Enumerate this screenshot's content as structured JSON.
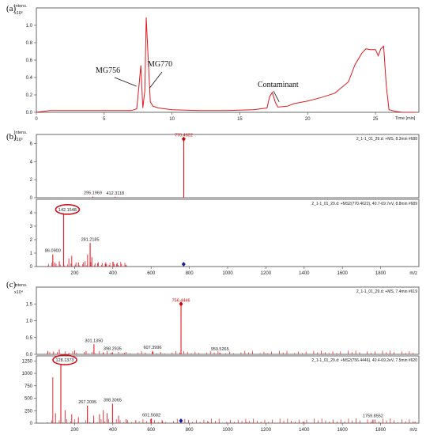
{
  "chart_data": [
    {
      "panel": "(a)",
      "type": "line",
      "y_label": "Intens.",
      "y_exp": "x10⁶",
      "x_label": "Time [min]",
      "xlim": [
        0,
        28.2
      ],
      "ylim": [
        0,
        1.2
      ],
      "x_ticks": [
        0,
        5,
        10,
        15,
        20,
        25
      ],
      "y_ticks": [
        "0.0",
        "0.2",
        "0.4",
        "0.6",
        "0.8",
        "1.0"
      ],
      "color": "#e0191f",
      "series": [
        {
          "x": [
            0,
            1,
            2,
            3,
            4,
            5,
            6,
            7,
            7.4,
            7.55,
            7.7,
            7.85,
            8.0,
            8.1,
            8.25,
            8.4,
            8.6,
            9,
            10,
            12,
            14,
            16,
            17,
            17.2,
            17.4,
            17.6,
            17.8,
            18.5,
            19,
            20,
            21,
            22,
            23,
            23.5,
            24,
            24.3,
            24.6,
            25,
            25.2,
            25.4,
            25.6,
            25.8,
            26,
            26.5,
            27,
            28
          ],
          "y": [
            0.0,
            0.02,
            0.02,
            0.02,
            0.02,
            0.02,
            0.02,
            0.02,
            0.04,
            0.28,
            0.54,
            0.05,
            0.25,
            1.09,
            0.6,
            0.12,
            0.07,
            0.05,
            0.03,
            0.02,
            0.02,
            0.03,
            0.05,
            0.18,
            0.23,
            0.12,
            0.06,
            0.07,
            0.1,
            0.13,
            0.17,
            0.22,
            0.35,
            0.55,
            0.68,
            0.73,
            0.72,
            0.72,
            0.65,
            0.73,
            0.76,
            0.3,
            0.03,
            0.01,
            0.0,
            0.0
          ]
        }
      ],
      "annotations": [
        {
          "text": "MG756",
          "x": 7.55,
          "y": 0.54
        },
        {
          "text": "MG770",
          "x": 8.1,
          "y": 1.0
        },
        {
          "text": "Contaminant",
          "x": 17.4,
          "y": 0.23
        }
      ]
    },
    {
      "panel": "(b)",
      "type": "bar",
      "subplot": "MS",
      "info": "2_1-1_01_29.d: +MS, 8.3min #688",
      "y_label": "Intens.",
      "y_exp": "x10⁵",
      "xlim": [
        0,
        2000
      ],
      "ylim": [
        0,
        7
      ],
      "y_ticks": [
        "0",
        "2",
        "4",
        "6"
      ],
      "peaks": [
        {
          "x": 295.1969,
          "y": 0.12,
          "label": "295.1969"
        },
        {
          "x": 412.3118,
          "y": 0.1,
          "label": "412.3118"
        },
        {
          "x": 770.4622,
          "y": 6.5,
          "label": "770.4622",
          "precursor": true
        }
      ]
    },
    {
      "panel": "(b)",
      "type": "bar",
      "subplot": "MS2",
      "info": "2_1-1_01_29.d: +MS2(770.4622), 40.7-69.7eV, 8.8min #689",
      "xlabel": "m/z",
      "xlim": [
        0,
        2000
      ],
      "ylim": [
        0,
        5
      ],
      "x_ticks": [
        200,
        400,
        600,
        800,
        1000,
        1200,
        1400,
        1600,
        1800
      ],
      "y_ticks": [
        "0",
        "1",
        "2",
        "3",
        "4"
      ],
      "circled": "142.1548",
      "precursor_marker": 770,
      "peaks": [
        {
          "x": 86.09,
          "y": 0.9,
          "label": "86.0900"
        },
        {
          "x": 96,
          "y": 0.3
        },
        {
          "x": 120,
          "y": 0.4
        },
        {
          "x": 142.1548,
          "y": 3.95,
          "label": "142.1548"
        },
        {
          "x": 170,
          "y": 0.6
        },
        {
          "x": 185,
          "y": 0.8
        },
        {
          "x": 220,
          "y": 0.3
        },
        {
          "x": 255,
          "y": 0.4
        },
        {
          "x": 268,
          "y": 0.9
        },
        {
          "x": 281.2185,
          "y": 1.75,
          "label": "281.2185"
        },
        {
          "x": 290,
          "y": 0.7
        },
        {
          "x": 320,
          "y": 0.25
        },
        {
          "x": 360,
          "y": 0.2
        },
        {
          "x": 400,
          "y": 0.35
        },
        {
          "x": 420,
          "y": 0.2
        },
        {
          "x": 470,
          "y": 0.1
        }
      ]
    },
    {
      "panel": "(c)",
      "type": "bar",
      "subplot": "MS",
      "info": "2_1-1_01_29.d: +MS, 7.4min #619",
      "y_label": "Intens.",
      "y_exp": "x10⁴",
      "xlim": [
        0,
        2000
      ],
      "ylim": [
        0,
        2.0
      ],
      "y_ticks": [
        "0.0",
        "0.5",
        "1.0",
        "1.5"
      ],
      "peaks": [
        {
          "x": 60,
          "y": 0.1
        },
        {
          "x": 90,
          "y": 0.08
        },
        {
          "x": 120,
          "y": 0.15
        },
        {
          "x": 200,
          "y": 0.12
        },
        {
          "x": 260,
          "y": 0.1
        },
        {
          "x": 301.135,
          "y": 0.3,
          "label": "301.1350"
        },
        {
          "x": 350,
          "y": 0.06
        },
        {
          "x": 398.2935,
          "y": 0.06,
          "label": "398.2935"
        },
        {
          "x": 460,
          "y": 0.04
        },
        {
          "x": 607.3996,
          "y": 0.1,
          "label": "607.3996"
        },
        {
          "x": 756.4446,
          "y": 1.5,
          "label": "756.4446",
          "precursor": true
        },
        {
          "x": 850,
          "y": 0.03
        },
        {
          "x": 959.5265,
          "y": 0.05,
          "label": "959.5265"
        },
        {
          "x": 1200,
          "y": 0.02
        },
        {
          "x": 1500,
          "y": 0.02
        }
      ]
    },
    {
      "panel": "(c)",
      "type": "bar",
      "subplot": "MS2",
      "info": "2_1-1_01_29.d: +MS2(756.4446), 40.4-69.2eV, 7.5min #620",
      "xlabel": "m/z",
      "xlim": [
        0,
        2000
      ],
      "ylim": [
        0,
        1350
      ],
      "x_ticks": [
        200,
        400,
        600,
        800,
        1000,
        1200,
        1400,
        1600,
        1800
      ],
      "y_ticks": [
        "0",
        "250",
        "500",
        "750",
        "1000",
        "1250"
      ],
      "circled": "128.1373",
      "precursor_marker": 756,
      "peaks": [
        {
          "x": 86,
          "y": 920
        },
        {
          "x": 100,
          "y": 200
        },
        {
          "x": 128.1373,
          "y": 1190,
          "label": "128.1373"
        },
        {
          "x": 150,
          "y": 260
        },
        {
          "x": 185,
          "y": 180
        },
        {
          "x": 220,
          "y": 120
        },
        {
          "x": 267.2095,
          "y": 350,
          "label": "267.2095"
        },
        {
          "x": 300,
          "y": 150
        },
        {
          "x": 330,
          "y": 180
        },
        {
          "x": 350,
          "y": 260
        },
        {
          "x": 370,
          "y": 200
        },
        {
          "x": 398.3065,
          "y": 390,
          "label": "398.3065"
        },
        {
          "x": 430,
          "y": 150
        },
        {
          "x": 470,
          "y": 80
        },
        {
          "x": 520,
          "y": 60
        },
        {
          "x": 601.5682,
          "y": 90,
          "label": "601.5682"
        },
        {
          "x": 660,
          "y": 40
        },
        {
          "x": 900,
          "y": 25
        },
        {
          "x": 1100,
          "y": 20
        },
        {
          "x": 1400,
          "y": 30
        },
        {
          "x": 1759.8552,
          "y": 70,
          "label": "1759.8552"
        },
        {
          "x": 1980,
          "y": 30
        }
      ]
    }
  ],
  "panel_labels": [
    "(a)",
    "(b)",
    "(c)"
  ]
}
